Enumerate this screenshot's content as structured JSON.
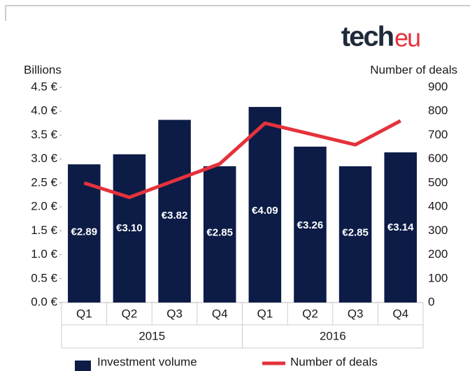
{
  "chart_data": {
    "type": "bar",
    "logo": [
      "tech",
      "eu"
    ],
    "y_label": "Billions",
    "y2_label": "Number of deals",
    "categories": [
      "Q1",
      "Q2",
      "Q3",
      "Q4",
      "Q1",
      "Q2",
      "Q3",
      "Q4"
    ],
    "groups": [
      "2015",
      "2016"
    ],
    "series": [
      {
        "name": "Investment volume",
        "type": "bar",
        "color": "#0c1c47",
        "values": [
          2.89,
          3.1,
          3.82,
          2.85,
          4.09,
          3.26,
          2.85,
          3.14
        ],
        "value_labels": [
          "€2.89",
          "€3.10",
          "€3.82",
          "€2.85",
          "€4.09",
          "€3.26",
          "€2.85",
          "€3.14"
        ]
      },
      {
        "name": "Number of deals",
        "type": "line",
        "color": "#e5323b",
        "axis": "y2",
        "values": [
          500,
          440,
          510,
          580,
          750,
          705,
          660,
          760
        ]
      }
    ],
    "ylim": [
      0,
      4.5
    ],
    "yticks": [
      {
        "value": 0,
        "label": "0.0 €"
      },
      {
        "value": 0.5,
        "label": "0.5 €"
      },
      {
        "value": 1,
        "label": "1.0 €"
      },
      {
        "value": 1.5,
        "label": "1.5 €"
      },
      {
        "value": 2,
        "label": "2.0 €"
      },
      {
        "value": 2.5,
        "label": "2.5 €"
      },
      {
        "value": 3,
        "label": "3.0 €"
      },
      {
        "value": 3.5,
        "label": "3.5 €"
      },
      {
        "value": 4,
        "label": "4.0 €"
      },
      {
        "value": 4.5,
        "label": "4.5 €"
      }
    ],
    "y2lim": [
      0,
      900
    ],
    "y2ticks": [
      0,
      100,
      200,
      300,
      400,
      500,
      600,
      700,
      800,
      900
    ]
  }
}
